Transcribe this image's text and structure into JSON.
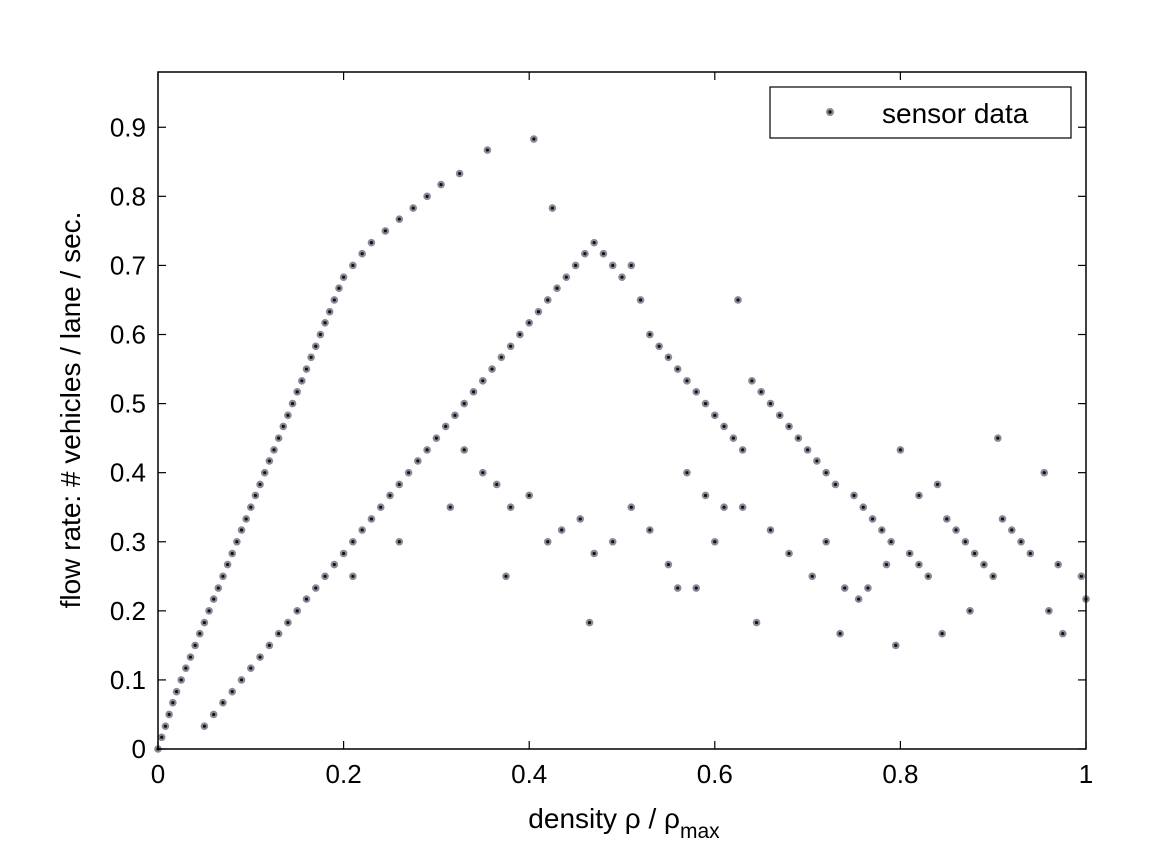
{
  "chart_data": {
    "type": "scatter",
    "title": "",
    "xlabel": "density ρ / ρ",
    "xlabel_subscript": "max",
    "ylabel": "flow rate: # vehicles / lane / sec.",
    "xlim": [
      0,
      1
    ],
    "ylim": [
      0,
      0.98
    ],
    "xticks": [
      0,
      0.2,
      0.4,
      0.6,
      0.8,
      1
    ],
    "xtick_labels": [
      "0",
      "0.2",
      "0.4",
      "0.6",
      "0.8",
      "1"
    ],
    "yticks": [
      0,
      0.1,
      0.2,
      0.3,
      0.4,
      0.5,
      0.6,
      0.7,
      0.8,
      0.9
    ],
    "ytick_labels": [
      "0",
      "0.1",
      "0.2",
      "0.3",
      "0.4",
      "0.5",
      "0.6",
      "0.7",
      "0.8",
      "0.9"
    ],
    "grid": false,
    "legend_position": "top-right",
    "marker_color": "#8a8a99",
    "marker_center_color": "#111111",
    "series": [
      {
        "name": "sensor data",
        "points": [
          [
            0,
            0
          ],
          [
            0.004,
            0.017
          ],
          [
            0.008,
            0.033
          ],
          [
            0.012,
            0.05
          ],
          [
            0.016,
            0.067
          ],
          [
            0.02,
            0.083
          ],
          [
            0.025,
            0.1
          ],
          [
            0.03,
            0.117
          ],
          [
            0.035,
            0.133
          ],
          [
            0.04,
            0.15
          ],
          [
            0.045,
            0.167
          ],
          [
            0.05,
            0.183
          ],
          [
            0.055,
            0.2
          ],
          [
            0.06,
            0.217
          ],
          [
            0.065,
            0.233
          ],
          [
            0.07,
            0.25
          ],
          [
            0.075,
            0.267
          ],
          [
            0.08,
            0.283
          ],
          [
            0.085,
            0.3
          ],
          [
            0.09,
            0.317
          ],
          [
            0.095,
            0.333
          ],
          [
            0.1,
            0.35
          ],
          [
            0.105,
            0.367
          ],
          [
            0.11,
            0.383
          ],
          [
            0.115,
            0.4
          ],
          [
            0.12,
            0.417
          ],
          [
            0.125,
            0.433
          ],
          [
            0.13,
            0.45
          ],
          [
            0.135,
            0.467
          ],
          [
            0.14,
            0.483
          ],
          [
            0.145,
            0.5
          ],
          [
            0.15,
            0.517
          ],
          [
            0.155,
            0.533
          ],
          [
            0.16,
            0.55
          ],
          [
            0.165,
            0.567
          ],
          [
            0.17,
            0.583
          ],
          [
            0.175,
            0.6
          ],
          [
            0.18,
            0.617
          ],
          [
            0.185,
            0.633
          ],
          [
            0.19,
            0.65
          ],
          [
            0.195,
            0.667
          ],
          [
            0.2,
            0.683
          ],
          [
            0.21,
            0.7
          ],
          [
            0.22,
            0.717
          ],
          [
            0.23,
            0.733
          ],
          [
            0.245,
            0.75
          ],
          [
            0.26,
            0.767
          ],
          [
            0.275,
            0.783
          ],
          [
            0.29,
            0.8
          ],
          [
            0.305,
            0.817
          ],
          [
            0.325,
            0.833
          ],
          [
            0.355,
            0.867
          ],
          [
            0.405,
            0.883
          ],
          [
            0.05,
            0.033
          ],
          [
            0.06,
            0.05
          ],
          [
            0.07,
            0.067
          ],
          [
            0.08,
            0.083
          ],
          [
            0.09,
            0.1
          ],
          [
            0.1,
            0.117
          ],
          [
            0.11,
            0.133
          ],
          [
            0.12,
            0.15
          ],
          [
            0.13,
            0.167
          ],
          [
            0.14,
            0.183
          ],
          [
            0.15,
            0.2
          ],
          [
            0.16,
            0.217
          ],
          [
            0.17,
            0.233
          ],
          [
            0.18,
            0.25
          ],
          [
            0.19,
            0.267
          ],
          [
            0.2,
            0.283
          ],
          [
            0.21,
            0.25
          ],
          [
            0.21,
            0.3
          ],
          [
            0.22,
            0.317
          ],
          [
            0.23,
            0.333
          ],
          [
            0.24,
            0.35
          ],
          [
            0.25,
            0.367
          ],
          [
            0.26,
            0.3
          ],
          [
            0.26,
            0.383
          ],
          [
            0.27,
            0.4
          ],
          [
            0.28,
            0.417
          ],
          [
            0.29,
            0.433
          ],
          [
            0.3,
            0.45
          ],
          [
            0.31,
            0.467
          ],
          [
            0.315,
            0.35
          ],
          [
            0.32,
            0.483
          ],
          [
            0.33,
            0.5
          ],
          [
            0.34,
            0.517
          ],
          [
            0.35,
            0.533
          ],
          [
            0.36,
            0.55
          ],
          [
            0.37,
            0.567
          ],
          [
            0.375,
            0.25
          ],
          [
            0.38,
            0.583
          ],
          [
            0.39,
            0.6
          ],
          [
            0.4,
            0.617
          ],
          [
            0.41,
            0.633
          ],
          [
            0.42,
            0.65
          ],
          [
            0.425,
            0.783
          ],
          [
            0.43,
            0.667
          ],
          [
            0.44,
            0.683
          ],
          [
            0.45,
            0.7
          ],
          [
            0.46,
            0.717
          ],
          [
            0.47,
            0.733
          ],
          [
            0.48,
            0.717
          ],
          [
            0.49,
            0.7
          ],
          [
            0.5,
            0.683
          ],
          [
            0.51,
            0.7
          ],
          [
            0.52,
            0.65
          ],
          [
            0.53,
            0.6
          ],
          [
            0.54,
            0.583
          ],
          [
            0.55,
            0.567
          ],
          [
            0.56,
            0.55
          ],
          [
            0.57,
            0.533
          ],
          [
            0.58,
            0.517
          ],
          [
            0.59,
            0.5
          ],
          [
            0.6,
            0.483
          ],
          [
            0.61,
            0.467
          ],
          [
            0.62,
            0.45
          ],
          [
            0.625,
            0.65
          ],
          [
            0.63,
            0.433
          ],
          [
            0.64,
            0.533
          ],
          [
            0.645,
            0.183
          ],
          [
            0.65,
            0.517
          ],
          [
            0.66,
            0.5
          ],
          [
            0.67,
            0.483
          ],
          [
            0.68,
            0.467
          ],
          [
            0.69,
            0.45
          ],
          [
            0.7,
            0.433
          ],
          [
            0.71,
            0.417
          ],
          [
            0.72,
            0.4
          ],
          [
            0.73,
            0.383
          ],
          [
            0.735,
            0.167
          ],
          [
            0.75,
            0.367
          ],
          [
            0.755,
            0.217
          ],
          [
            0.76,
            0.35
          ],
          [
            0.77,
            0.333
          ],
          [
            0.78,
            0.317
          ],
          [
            0.79,
            0.3
          ],
          [
            0.795,
            0.15
          ],
          [
            0.8,
            0.433
          ],
          [
            0.81,
            0.283
          ],
          [
            0.82,
            0.267
          ],
          [
            0.83,
            0.25
          ],
          [
            0.845,
            0.167
          ],
          [
            0.85,
            0.333
          ],
          [
            0.86,
            0.317
          ],
          [
            0.87,
            0.3
          ],
          [
            0.875,
            0.2
          ],
          [
            0.88,
            0.283
          ],
          [
            0.89,
            0.267
          ],
          [
            0.9,
            0.25
          ],
          [
            0.905,
            0.45
          ],
          [
            0.91,
            0.333
          ],
          [
            0.92,
            0.317
          ],
          [
            0.93,
            0.3
          ],
          [
            0.94,
            0.283
          ],
          [
            0.955,
            0.4
          ],
          [
            0.96,
            0.2
          ],
          [
            0.97,
            0.267
          ],
          [
            0.975,
            0.167
          ],
          [
            0.995,
            0.25
          ],
          [
            1,
            0.217
          ],
          [
            0.33,
            0.433
          ],
          [
            0.35,
            0.4
          ],
          [
            0.365,
            0.383
          ],
          [
            0.38,
            0.35
          ],
          [
            0.4,
            0.367
          ],
          [
            0.42,
            0.3
          ],
          [
            0.435,
            0.317
          ],
          [
            0.455,
            0.333
          ],
          [
            0.465,
            0.183
          ],
          [
            0.47,
            0.283
          ],
          [
            0.49,
            0.3
          ],
          [
            0.51,
            0.35
          ],
          [
            0.53,
            0.317
          ],
          [
            0.55,
            0.267
          ],
          [
            0.56,
            0.233
          ],
          [
            0.58,
            0.233
          ],
          [
            0.6,
            0.3
          ],
          [
            0.57,
            0.4
          ],
          [
            0.59,
            0.367
          ],
          [
            0.61,
            0.35
          ],
          [
            0.63,
            0.35
          ],
          [
            0.66,
            0.317
          ],
          [
            0.68,
            0.283
          ],
          [
            0.705,
            0.25
          ],
          [
            0.72,
            0.3
          ],
          [
            0.74,
            0.233
          ],
          [
            0.765,
            0.233
          ],
          [
            0.785,
            0.267
          ],
          [
            0.82,
            0.367
          ],
          [
            0.84,
            0.383
          ]
        ]
      }
    ]
  }
}
